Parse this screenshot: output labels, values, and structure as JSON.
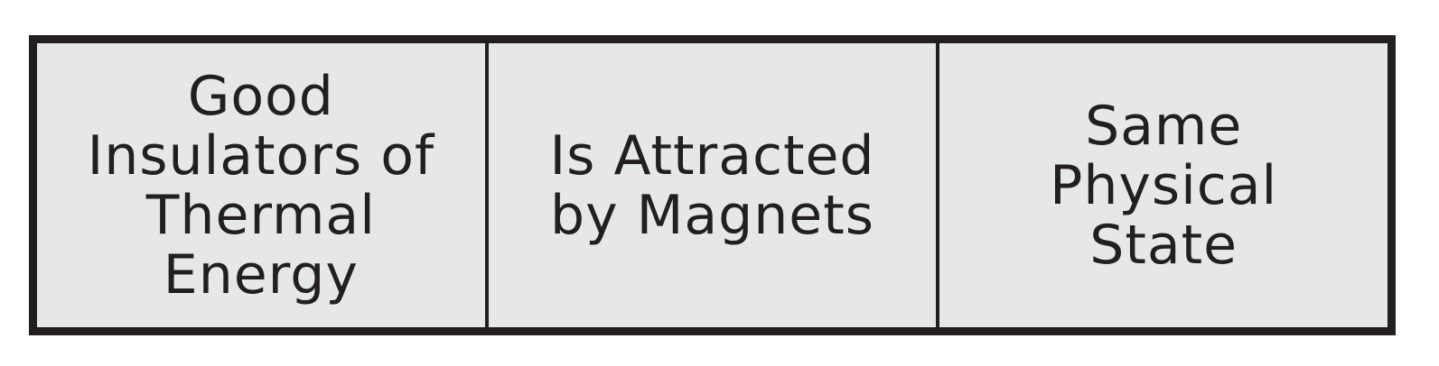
{
  "table": {
    "cells": [
      {
        "text": "Good\nInsulators of\nThermal\nEnergy"
      },
      {
        "text": "Is Attracted\nby Magnets"
      },
      {
        "text": "Same\nPhysical\nState"
      }
    ]
  },
  "colors": {
    "border": "#231f20",
    "cell_fill": "#e6e7e8",
    "text": "#231f20",
    "background": "#ffffff"
  }
}
